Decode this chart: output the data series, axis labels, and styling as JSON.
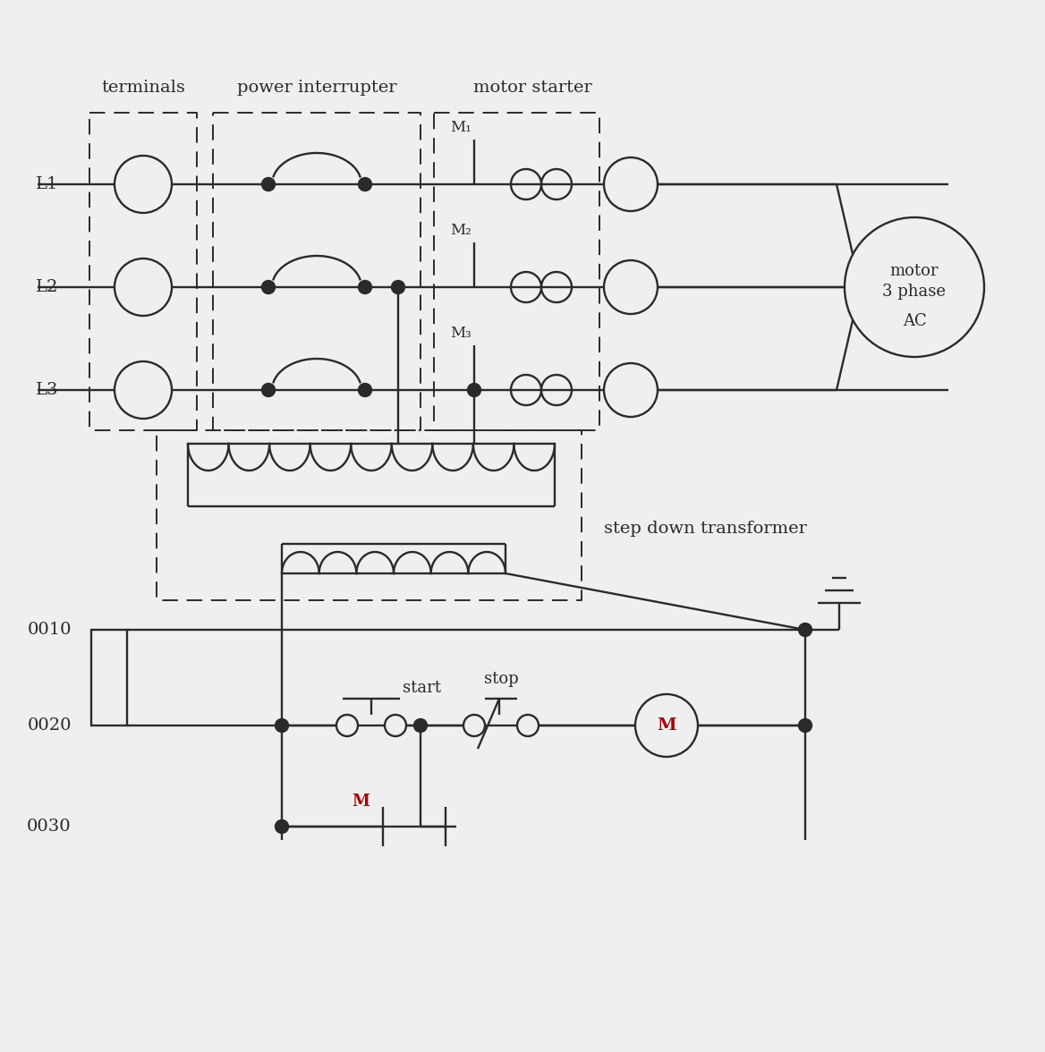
{
  "bg_color": "#efefef",
  "lc": "#2a2a2a",
  "rc": "#aa0000",
  "figsize": [
    11.68,
    11.76
  ],
  "dpi": 100,
  "title_terminals": "terminals",
  "title_power": "power interrupter",
  "title_motor_starter": "motor starter",
  "title_transformer": "step down transformer",
  "motor_text_lines": [
    "motor",
    "3 phase",
    "AC"
  ],
  "line_labels": [
    "L1",
    "L2",
    "L3"
  ],
  "contact_labels": [
    "M₁",
    "M₂",
    "M₃"
  ],
  "rung_labels": [
    "0010",
    "0020",
    "0030"
  ],
  "start_label": "start",
  "stop_label": "stop",
  "lw": 1.7
}
